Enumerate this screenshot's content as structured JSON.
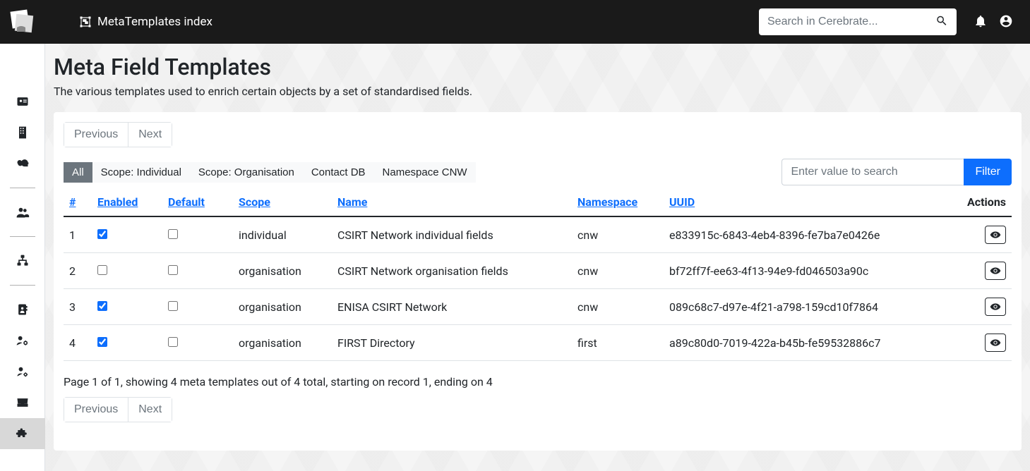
{
  "header": {
    "breadcrumb": "MetaTemplates index",
    "search_placeholder": "Search in Cerebrate..."
  },
  "page": {
    "title": "Meta Field Templates",
    "description": "The various templates used to enrich certain objects by a set of standardised fields."
  },
  "pager": {
    "previous": "Previous",
    "next": "Next"
  },
  "filters": {
    "tabs": [
      {
        "label": "All",
        "active": true
      },
      {
        "label": "Scope: Individual"
      },
      {
        "label": "Scope: Organisation"
      },
      {
        "label": "Contact DB"
      },
      {
        "label": "Namespace CNW"
      }
    ],
    "search_placeholder": "Enter value to search",
    "filter_button": "Filter"
  },
  "table": {
    "columns": {
      "id": "#",
      "enabled": "Enabled",
      "default": "Default",
      "scope": "Scope",
      "name": "Name",
      "namespace": "Namespace",
      "uuid": "UUID",
      "actions": "Actions"
    },
    "rows": [
      {
        "id": "1",
        "enabled": true,
        "default": false,
        "scope": "individual",
        "name": "CSIRT Network individual fields",
        "namespace": "cnw",
        "uuid": "e833915c-6843-4eb4-8396-fe7ba7e0426e"
      },
      {
        "id": "2",
        "enabled": false,
        "default": false,
        "scope": "organisation",
        "name": "CSIRT Network organisation fields",
        "namespace": "cnw",
        "uuid": "bf72ff7f-ee63-4f13-94e9-fd046503a90c"
      },
      {
        "id": "3",
        "enabled": true,
        "default": false,
        "scope": "organisation",
        "name": "ENISA CSIRT Network",
        "namespace": "cnw",
        "uuid": "089c68c7-d97e-4f21-a798-159cd10f7864"
      },
      {
        "id": "4",
        "enabled": true,
        "default": false,
        "scope": "organisation",
        "name": "FIRST Directory",
        "namespace": "first",
        "uuid": "a89c80d0-7019-422a-b45b-fe59532886c7"
      }
    ]
  },
  "summary": "Page 1 of 1, showing 4 meta templates out of 4 total, starting on record 1, ending on 4"
}
